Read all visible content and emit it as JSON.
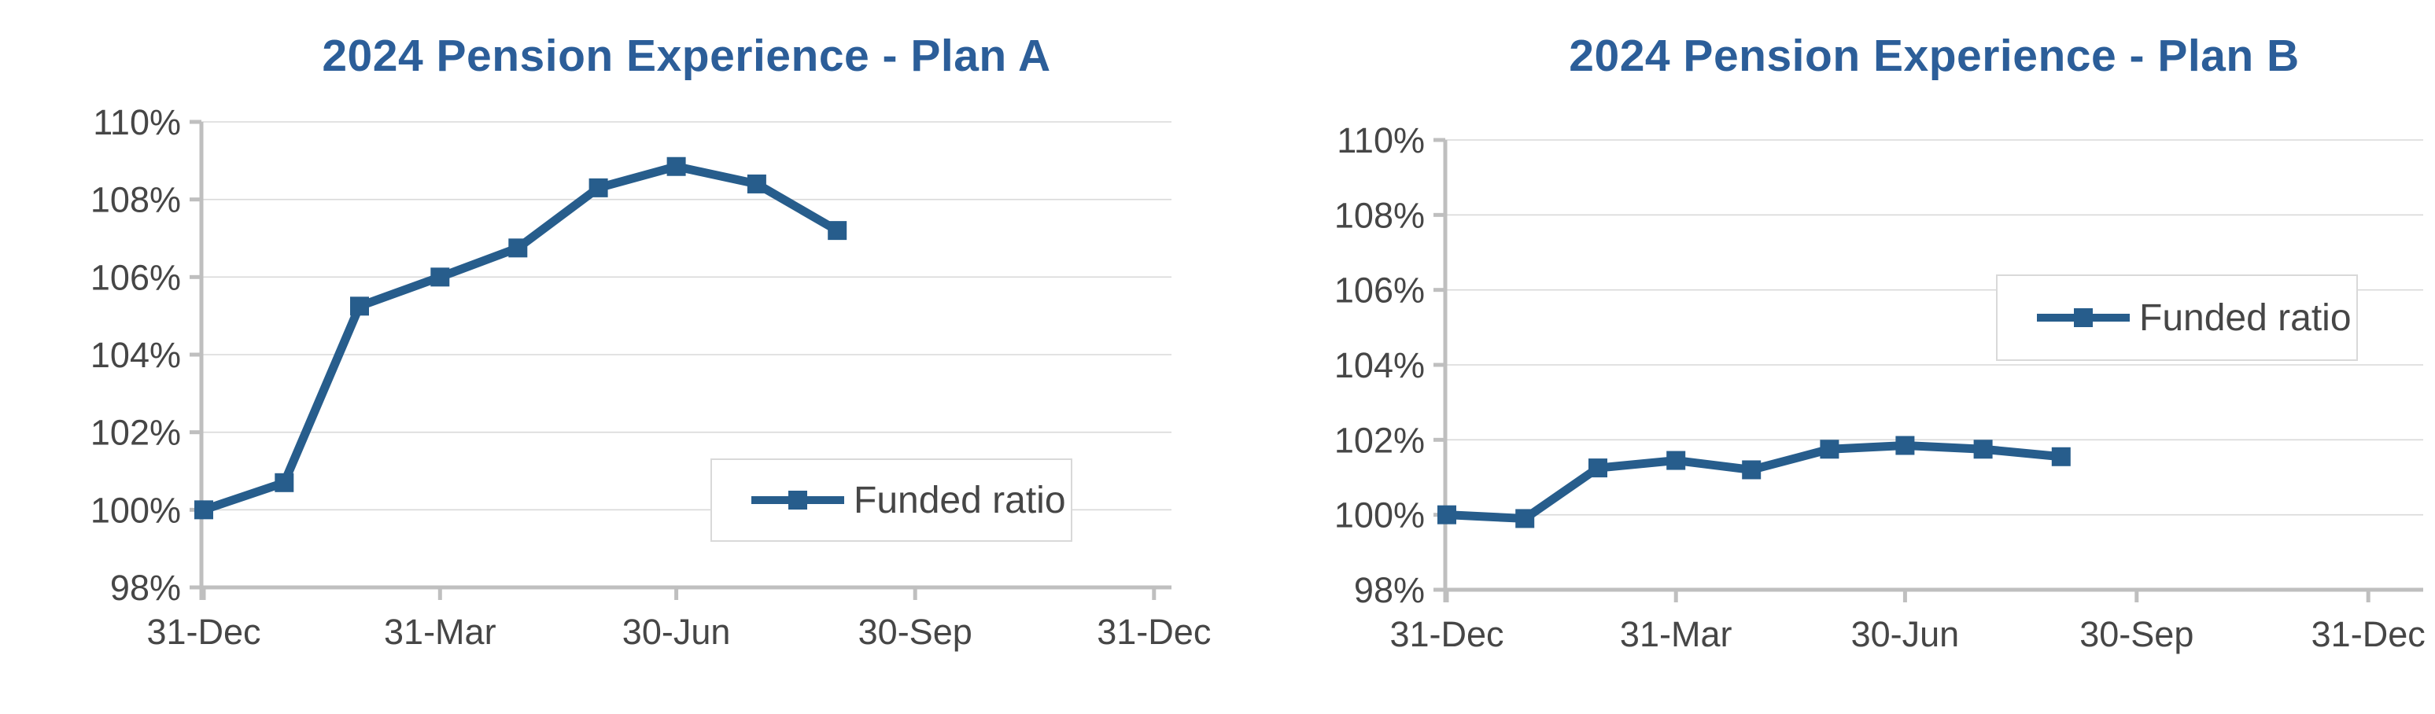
{
  "colors": {
    "series": "#275D8C",
    "title": "#2C5E99",
    "axis_text": "#464646",
    "gridline": "#D9D9D9",
    "axis_line": "#BFBFBF",
    "legend_border": "#D9D9D9",
    "legend_background": "#FFFFFF"
  },
  "chart_data": [
    {
      "type": "line",
      "title": "2024 Pension Experience - Plan A",
      "categories": [
        "31-Dec",
        "31-Jan",
        "29-Feb",
        "31-Mar",
        "30-Apr",
        "31-May",
        "30-Jun",
        "31-Jul",
        "31-Aug"
      ],
      "x_days": [
        0,
        31,
        60,
        91,
        121,
        152,
        182,
        213,
        244
      ],
      "series": [
        {
          "name": "Funded ratio",
          "values": [
            100.0,
            100.7,
            105.25,
            106.0,
            106.75,
            108.3,
            108.85,
            108.4,
            107.2
          ]
        }
      ],
      "ylim": [
        98,
        110
      ],
      "y_tick_labels": [
        "110%",
        "108%",
        "106%",
        "104%",
        "102%",
        "100%",
        "98%"
      ],
      "x_axis_ticks": [
        {
          "label": "31-Dec",
          "day": 0
        },
        {
          "label": "31-Mar",
          "day": 91
        },
        {
          "label": "30-Jun",
          "day": 182
        },
        {
          "label": "30-Sep",
          "day": 274
        },
        {
          "label": "31-Dec",
          "day": 366
        }
      ],
      "grid": true,
      "marker": "square",
      "legend": {
        "label": "Funded ratio",
        "position": "inside-bottom-right"
      }
    },
    {
      "type": "line",
      "title": "2024 Pension Experience - Plan B",
      "categories": [
        "31-Dec",
        "31-Jan",
        "29-Feb",
        "31-Mar",
        "30-Apr",
        "31-May",
        "30-Jun",
        "31-Jul",
        "31-Aug"
      ],
      "x_days": [
        0,
        31,
        60,
        91,
        121,
        152,
        182,
        213,
        244
      ],
      "series": [
        {
          "name": "Funded ratio",
          "values": [
            100.0,
            99.9,
            101.25,
            101.45,
            101.2,
            101.75,
            101.85,
            101.75,
            101.55
          ]
        }
      ],
      "ylim": [
        98,
        110
      ],
      "y_tick_labels": [
        "110%",
        "108%",
        "106%",
        "104%",
        "102%",
        "100%",
        "98%"
      ],
      "x_axis_ticks": [
        {
          "label": "31-Dec",
          "day": 0
        },
        {
          "label": "31-Mar",
          "day": 91
        },
        {
          "label": "30-Jun",
          "day": 182
        },
        {
          "label": "30-Sep",
          "day": 274
        },
        {
          "label": "31-Dec",
          "day": 366
        }
      ],
      "grid": true,
      "marker": "square",
      "legend": {
        "label": "Funded ratio",
        "position": "inside-top-right"
      }
    }
  ]
}
